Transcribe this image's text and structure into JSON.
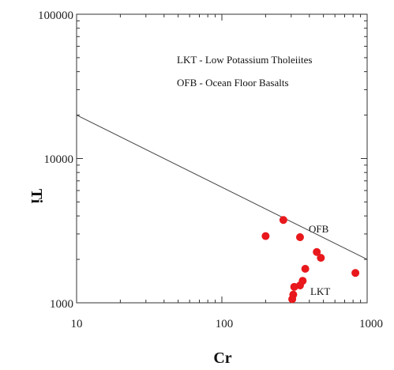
{
  "chart_data": {
    "type": "scatter",
    "title": "",
    "xlabel": "Cr",
    "ylabel": "Ti",
    "x_scale": "log",
    "y_scale": "log",
    "xlim": [
      10,
      1000
    ],
    "ylim": [
      1000,
      100000
    ],
    "x_ticks": [
      "10",
      "100",
      "1000"
    ],
    "y_ticks": [
      "1000",
      "10000",
      "100000"
    ],
    "grid": false,
    "legend_notes": [
      "LKT - Low Potassium Tholeiites",
      "OFB - Ocean Floor Basalts"
    ],
    "region_labels": [
      "OFB",
      "LKT"
    ],
    "discriminant_line": {
      "x": [
        10,
        1000
      ],
      "y": [
        20000,
        2000
      ]
    },
    "points_color": "#e8181c",
    "points": [
      {
        "x": 200,
        "y": 2900
      },
      {
        "x": 265,
        "y": 3750
      },
      {
        "x": 345,
        "y": 2850
      },
      {
        "x": 450,
        "y": 2250
      },
      {
        "x": 480,
        "y": 2050
      },
      {
        "x": 375,
        "y": 1720
      },
      {
        "x": 360,
        "y": 1420
      },
      {
        "x": 345,
        "y": 1320
      },
      {
        "x": 315,
        "y": 1290
      },
      {
        "x": 310,
        "y": 1140
      },
      {
        "x": 305,
        "y": 1060
      },
      {
        "x": 830,
        "y": 1610
      }
    ]
  }
}
